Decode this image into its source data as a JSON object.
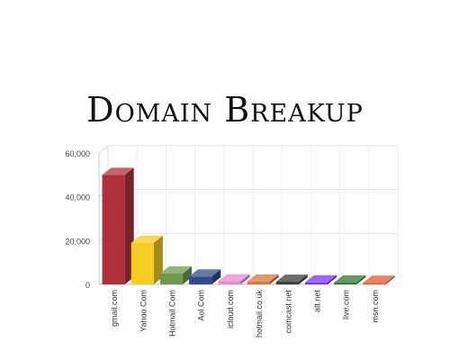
{
  "chart_data": {
    "type": "bar",
    "title": "Domain Breakup",
    "xlabel": "",
    "ylabel": "",
    "ylim": [
      0,
      60000
    ],
    "yticks": [
      0,
      20000,
      40000,
      60000
    ],
    "ytick_labels": [
      "0",
      "20,000",
      "40,000",
      "60,000"
    ],
    "grid": true,
    "legend": "none",
    "style": "3d",
    "categories": [
      "gmail.com",
      "Yahoo.Com",
      "Hotmail.Com",
      "Aol.Com",
      "icloud.com",
      "hotmail.co.uk",
      "comcast.net",
      "att.net",
      "live.com",
      "msn.com"
    ],
    "values": [
      50000,
      19000,
      5000,
      3600,
      1400,
      1300,
      1200,
      900,
      800,
      700
    ],
    "colors": [
      "#b0303a",
      "#f5cc1f",
      "#6f9a4e",
      "#2f4d8c",
      "#e58ad6",
      "#d47a3c",
      "#3b3b3b",
      "#7a35f0",
      "#2f7a2f",
      "#e05a2a"
    ]
  }
}
